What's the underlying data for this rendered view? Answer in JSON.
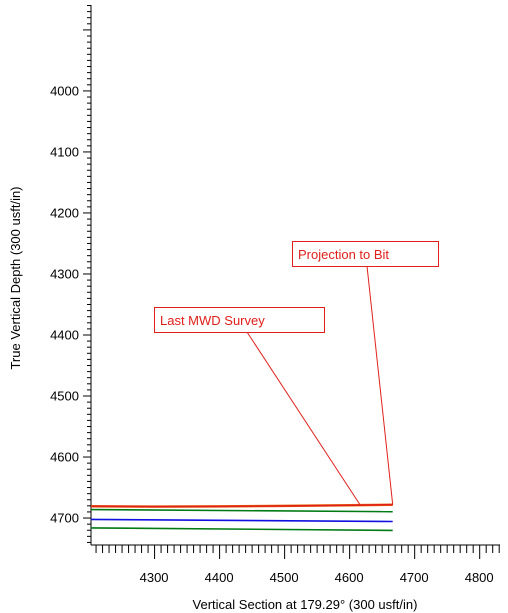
{
  "chart_data": {
    "type": "line",
    "xlabel": "Vertical Section at 179.29° (300 usft/in)",
    "ylabel": "True Vertical Depth (300 usft/in)",
    "xlim": [
      4203,
      4832
    ],
    "ylim": [
      3860,
      4745
    ],
    "y_inverted": true,
    "grid": false,
    "x_ticks": [
      "4300",
      "4400",
      "4500",
      "4600",
      "4700",
      "4800"
    ],
    "y_ticks": [
      "4000",
      "4100",
      "4200",
      "4300",
      "4400",
      "4500",
      "4600",
      "4700"
    ],
    "series": [
      {
        "color": "#e8710a",
        "x": [
          4203,
          4300,
          4400,
          4500,
          4600,
          4667
        ],
        "y": [
          4681.5,
          4682,
          4681.8,
          4681,
          4680,
          4679
        ]
      },
      {
        "color": "#e0201a",
        "x": [
          4203,
          4300,
          4400,
          4500,
          4600,
          4667
        ],
        "y": [
          4681.5,
          4682,
          4681.8,
          4681,
          4680,
          4679
        ]
      },
      {
        "color": "#007a12",
        "x": [
          4203,
          4667
        ],
        "y": [
          4687,
          4690.5
        ]
      },
      {
        "color": "#1010e0",
        "x": [
          4203,
          4667
        ],
        "y": [
          4703,
          4706.5
        ]
      },
      {
        "color": "#007a12",
        "x": [
          4203,
          4667
        ],
        "y": [
          4717,
          4721
        ]
      }
    ],
    "annotations": [
      {
        "text": "Projection to Bit",
        "color": "#e0201a",
        "x": 4667,
        "y": 4679
      },
      {
        "text": "Last MWD Survey",
        "color": "#e0201a",
        "x": 4617,
        "y": 4679.5
      }
    ]
  }
}
